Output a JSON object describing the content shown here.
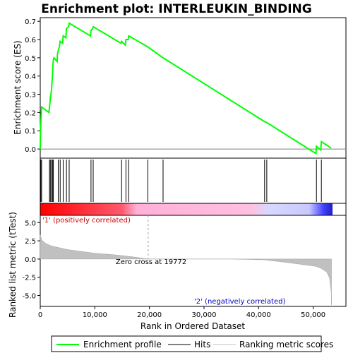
{
  "chart_data": [
    {
      "type": "line",
      "title": "Enrichment plot: INTERLEUKIN_BINDING",
      "ylabel": "Enrichment score (ES)",
      "ylim": [
        -0.05,
        0.72
      ],
      "yticks": [
        "0.0",
        "0.1",
        "0.2",
        "0.3",
        "0.4",
        "0.5",
        "0.6",
        "0.7"
      ],
      "xlim": [
        0,
        56000
      ],
      "series": [
        {
          "name": "Enrichment profile",
          "color": "#00ff00",
          "x": [
            0,
            50,
            150,
            250,
            1600,
            1700,
            1800,
            1850,
            1950,
            2050,
            2150,
            2250,
            2300,
            2400,
            2500,
            3100,
            3150,
            3300,
            3500,
            3650,
            4100,
            4200,
            4700,
            4800,
            5200,
            5300,
            9200,
            9300,
            9600,
            9700,
            14800,
            14900,
            15600,
            15700,
            16100,
            16200,
            19700,
            22500,
            41100,
            41500,
            50500,
            50600,
            51400,
            51500,
            53300
          ],
          "y": [
            0.0,
            0.1,
            0.17,
            0.23,
            0.2,
            0.23,
            0.26,
            0.28,
            0.3,
            0.32,
            0.36,
            0.41,
            0.45,
            0.49,
            0.5,
            0.48,
            0.52,
            0.54,
            0.56,
            0.59,
            0.58,
            0.62,
            0.61,
            0.66,
            0.67,
            0.69,
            0.62,
            0.65,
            0.66,
            0.67,
            0.58,
            0.59,
            0.57,
            0.6,
            0.6,
            0.62,
            0.56,
            0.5,
            0.15,
            0.145,
            -0.025,
            0.015,
            -0.005,
            0.04,
            0.005
          ]
        }
      ],
      "hits": [
        100,
        250,
        1700,
        1850,
        2050,
        2250,
        2400,
        3300,
        3650,
        4200,
        4800,
        5300,
        9300,
        9700,
        14900,
        15700,
        16200,
        19700,
        22500,
        41100,
        41500,
        50600,
        51500
      ]
    },
    {
      "type": "area",
      "ylabel": "Ranked list metric (tTest)",
      "xlabel": "Rank in Ordered Dataset",
      "ylim": [
        -6.5,
        6.0
      ],
      "yticks": [
        "5.0",
        "2.5",
        "0.0",
        "-2.5",
        "-5.0"
      ],
      "xticks": [
        "0",
        "10,000",
        "20,000",
        "30,000",
        "40,000",
        "50,000"
      ],
      "xlim": [
        0,
        56000
      ],
      "color": "#c0c0c0",
      "x": [
        0,
        300,
        1000,
        2000,
        3500,
        5000,
        7000,
        10000,
        14000,
        17000,
        19772,
        25000,
        35000,
        41000,
        45000,
        49000,
        50500,
        51500,
        52500,
        53000,
        53300,
        53350
      ],
      "y": [
        3.3,
        2.6,
        2.15,
        1.8,
        1.55,
        1.3,
        1.1,
        0.8,
        0.55,
        0.3,
        0.0,
        0.0,
        0.0,
        -0.1,
        -0.45,
        -0.85,
        -1.0,
        -1.3,
        -1.8,
        -2.6,
        -4.5,
        -6.3
      ],
      "zero_cross_label": "Zero cross at 19772",
      "zero_cross_x": 19772,
      "pos_label": "'1' (positively correlated)",
      "neg_label": "'2' (negatively correlated)"
    }
  ],
  "legend": {
    "items": [
      {
        "label": "Enrichment profile",
        "color": "#00ff00"
      },
      {
        "label": "Hits",
        "color": "#000000"
      },
      {
        "label": "Ranking metric scores",
        "color": "#c0c0c0"
      }
    ]
  }
}
